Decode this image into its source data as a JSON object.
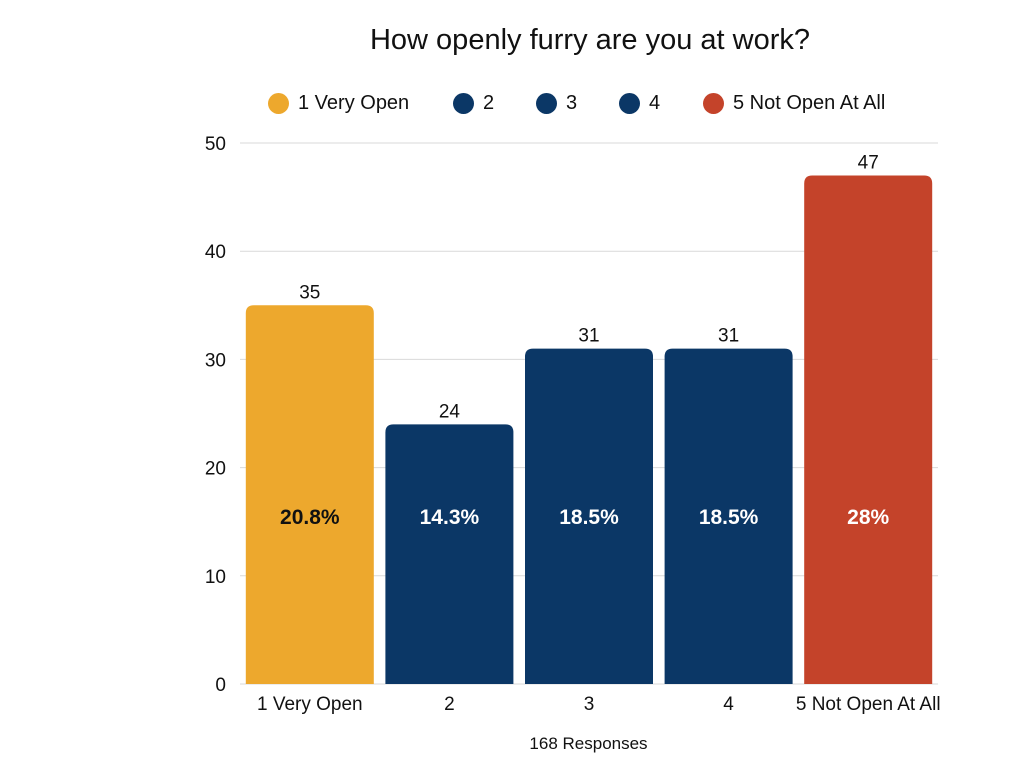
{
  "chart_data": {
    "type": "bar",
    "title": "How openly furry are you at work?",
    "categories": [
      "1 Very Open",
      "2",
      "3",
      "4",
      "5 Not Open At All"
    ],
    "values": [
      35,
      24,
      31,
      31,
      47
    ],
    "percent_labels": [
      "20.8%",
      "14.3%",
      "18.5%",
      "18.5%",
      "28%"
    ],
    "colors": [
      "#EDA82D",
      "#0B3766",
      "#0B3766",
      "#0B3766",
      "#C4432A"
    ],
    "percent_label_colors": [
      "#111111",
      "#FFFFFF",
      "#FFFFFF",
      "#FFFFFF",
      "#FFFFFF"
    ],
    "ylim": [
      0,
      50
    ],
    "yticks": [
      0,
      10,
      20,
      30,
      40,
      50
    ],
    "grid": true,
    "legend_placement": "top",
    "xlabel": "168 Responses",
    "ylabel": ""
  }
}
